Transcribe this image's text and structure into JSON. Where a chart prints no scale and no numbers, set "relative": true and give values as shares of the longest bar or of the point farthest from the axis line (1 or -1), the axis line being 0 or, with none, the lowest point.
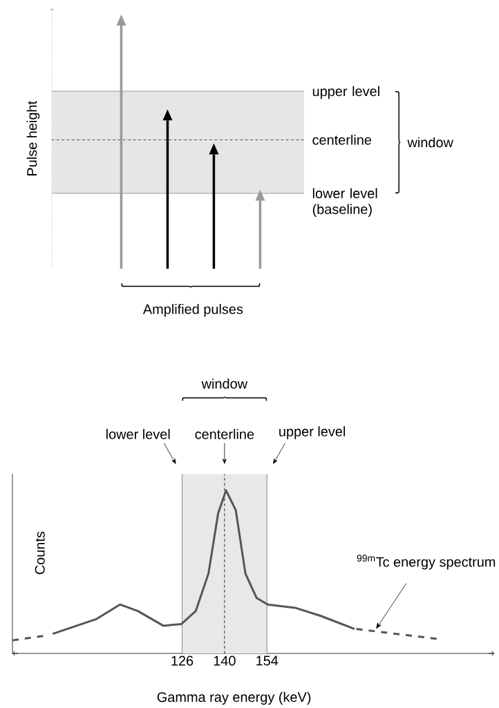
{
  "chart_data": [
    {
      "type": "bar",
      "relative": true,
      "ylabel": "Pulse height",
      "xlabel": "Amplified pulses",
      "categories": [
        null,
        null,
        null,
        null
      ],
      "values": [
        1,
        0.61,
        0.47,
        0.28
      ],
      "colors": [
        "#999999",
        "#000000",
        "#000000",
        "#999999"
      ],
      "bands": [
        {
          "axis": "y",
          "from": 0.31,
          "to": 0.73,
          "color": "#e6e6e6"
        }
      ],
      "annotations": [
        "window"
      ],
      "ref_lines": [
        {
          "axis": "y",
          "value": 0.73,
          "label": "upper level",
          "color": "#999999",
          "line_style": "solid"
        },
        {
          "axis": "y",
          "value": 0.53,
          "label": "centerline",
          "color": "#333333",
          "line_style": "dashdot"
        },
        {
          "axis": "y",
          "value": 0.31,
          "label": "lower level (baseline)",
          "color": "#999999",
          "line_style": "solid"
        }
      ]
    },
    {
      "type": "line",
      "relative": true,
      "xlabel": "Gamma ray energy (keV)",
      "ylabel": "Counts",
      "xlim": [
        70,
        229
      ],
      "xticks": [
        126,
        140,
        154
      ],
      "series": [
        {
          "color": "#555555",
          "line_style": "solid",
          "x": [
            83.3,
            97.6,
            105.5,
            111.4,
            119.8,
            125.7,
            130.5,
            134.7,
            137.9,
            140.5,
            143.7,
            146.9,
            150.6,
            154.3,
            163.3,
            171.8,
            182.9
          ],
          "values": [
            0.12,
            0.21,
            0.3,
            0.26,
            0.17,
            0.18,
            0.26,
            0.49,
            0.86,
            1,
            0.88,
            0.49,
            0.34,
            0.3,
            0.28,
            0.23,
            0.15
          ]
        },
        {
          "color": "#555555",
          "line_style": "dashed",
          "x": [
            70,
            81.1
          ],
          "values": [
            0.08,
            0.11
          ]
        },
        {
          "color": "#555555",
          "line_style": "dashed",
          "x": [
            183.5,
            210
          ],
          "values": [
            0.15,
            0.09
          ]
        }
      ],
      "bands": [
        {
          "axis": "x",
          "from": 126,
          "to": 154,
          "color": "#e8e8e8"
        }
      ],
      "ref_lines": [
        {
          "axis": "x",
          "value": 126,
          "label": "lower level",
          "color": "#888888",
          "line_style": "solid"
        },
        {
          "axis": "x",
          "value": 140,
          "label": "centerline",
          "color": "#000000",
          "line_style": "dashdot"
        },
        {
          "axis": "x",
          "value": 154,
          "label": "upper level",
          "color": "#888888",
          "line_style": "solid"
        }
      ],
      "annotations": [
        "window",
        {
          "text": "$^{99m}$Tc energy spectrum",
          "x": 190,
          "y": 0.15
        }
      ]
    }
  ]
}
